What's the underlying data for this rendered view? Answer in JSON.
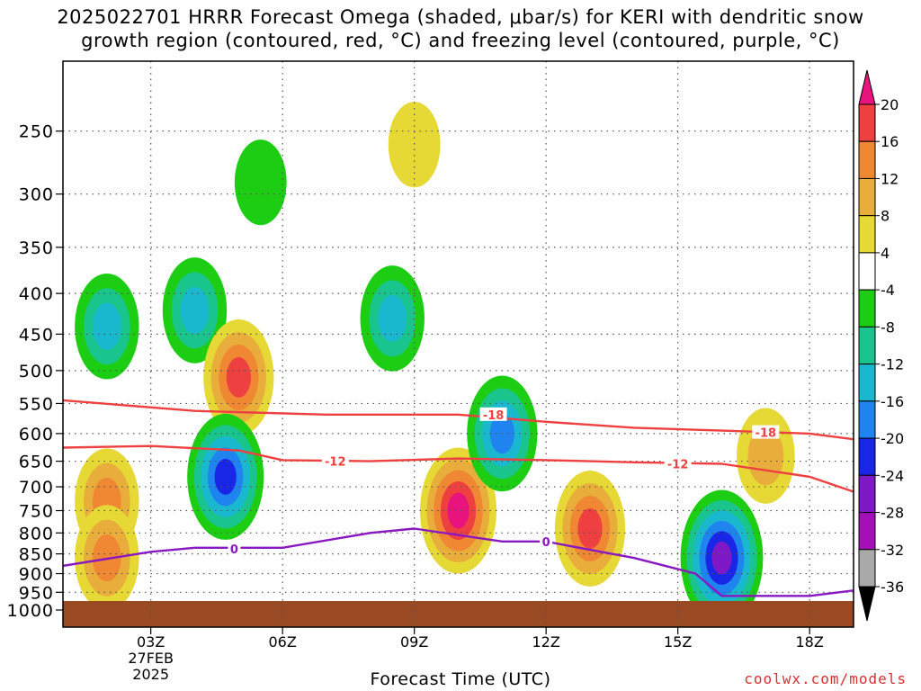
{
  "title_line1": "2025022701 HRRR Forecast Omega (shaded, μbar/s) for KERI with dendritic snow",
  "title_line2": "growth region (contoured, red, °C) and freezing level (contoured, purple, °C)",
  "credit": "coolwx.com/models",
  "chart_data": {
    "type": "contour",
    "title": "2025022701 HRRR Forecast Omega (shaded, μbar/s) for KERI with dendritic snow growth region (contoured, red, °C) and freezing level (contoured, purple, °C)",
    "xlabel": "Forecast Time (UTC)",
    "ylabel": "",
    "x_ticks": [
      {
        "hour": 3,
        "label": [
          "03Z",
          "27FEB",
          "2025"
        ]
      },
      {
        "hour": 6,
        "label": [
          "06Z"
        ]
      },
      {
        "hour": 9,
        "label": [
          "09Z"
        ]
      },
      {
        "hour": 12,
        "label": [
          "12Z"
        ]
      },
      {
        "hour": 15,
        "label": [
          "15Z"
        ]
      },
      {
        "hour": 18,
        "label": [
          "18Z"
        ]
      }
    ],
    "xlim": [
      1,
      19
    ],
    "y_ticks": [
      250,
      300,
      350,
      400,
      450,
      500,
      550,
      600,
      650,
      700,
      750,
      800,
      850,
      900,
      950,
      1000
    ],
    "ylim_hpa": [
      1000,
      200
    ],
    "y_scale": "log-pressure",
    "grid": true,
    "colorbar": {
      "labels": [
        "20",
        "16",
        "12",
        "8",
        "4",
        "-4",
        "-8",
        "-12",
        "-16",
        "-20",
        "-24",
        "-28",
        "-32",
        "-36"
      ],
      "colors": [
        "#e8137c",
        "#ee4040",
        "#ef8733",
        "#e8ad3a",
        "#e6d835",
        "#ffffff",
        "#1ccd13",
        "#19c58c",
        "#1ab8cf",
        "#1f84ef",
        "#1a26e6",
        "#7f18c6",
        "#a310b8",
        "#a9a9a9",
        "#000000"
      ]
    },
    "omega_features": [
      {
        "hour": 2.0,
        "hpa": 440,
        "peak": -14
      },
      {
        "hour": 4.0,
        "hpa": 420,
        "peak": -14
      },
      {
        "hour": 5.0,
        "hpa": 510,
        "peak": 16
      },
      {
        "hour": 5.5,
        "hpa": 290,
        "peak": -6
      },
      {
        "hour": 4.7,
        "hpa": 680,
        "peak": -20
      },
      {
        "hour": 2.0,
        "hpa": 730,
        "peak": 12
      },
      {
        "hour": 2.0,
        "hpa": 860,
        "peak": 12
      },
      {
        "hour": 9.0,
        "hpa": 260,
        "peak": 4
      },
      {
        "hour": 8.5,
        "hpa": 430,
        "peak": -12
      },
      {
        "hour": 10.0,
        "hpa": 750,
        "peak": 24
      },
      {
        "hour": 11.0,
        "hpa": 600,
        "peak": -18
      },
      {
        "hour": 13.0,
        "hpa": 790,
        "peak": 16
      },
      {
        "hour": 16.0,
        "hpa": 860,
        "peak": -24
      },
      {
        "hour": 17.0,
        "hpa": 640,
        "peak": 8
      }
    ],
    "series": [
      {
        "name": "-18",
        "color": "#ee4040",
        "x": [
          1,
          4,
          7,
          10,
          12,
          14,
          16,
          18,
          19
        ],
        "y": [
          545,
          562,
          568,
          568,
          580,
          590,
          595,
          600,
          610
        ]
      },
      {
        "name": "-12",
        "color": "#ee4040",
        "x": [
          1,
          3,
          5,
          6,
          8,
          10,
          12,
          14,
          16,
          18,
          19
        ],
        "y": [
          625,
          622,
          630,
          648,
          650,
          645,
          648,
          652,
          655,
          680,
          710
        ]
      },
      {
        "name": "0",
        "color": "#8a18c0",
        "x": [
          1,
          3,
          4,
          6,
          8,
          9,
          11,
          12,
          13,
          14,
          15.4,
          16,
          18,
          19
        ],
        "y": [
          880,
          845,
          835,
          835,
          800,
          790,
          820,
          820,
          840,
          860,
          900,
          960,
          960,
          945
        ]
      }
    ],
    "contour_labels": [
      {
        "text": "-18",
        "hour": 10.8,
        "hpa": 568
      },
      {
        "text": "-18",
        "hour": 17.0,
        "hpa": 598
      },
      {
        "text": "-12",
        "hour": 7.2,
        "hpa": 650
      },
      {
        "text": "-12",
        "hour": 15.0,
        "hpa": 655
      },
      {
        "text": "0",
        "hour": 4.9,
        "hpa": 838
      },
      {
        "text": "0",
        "hour": 12.0,
        "hpa": 820
      }
    ]
  }
}
